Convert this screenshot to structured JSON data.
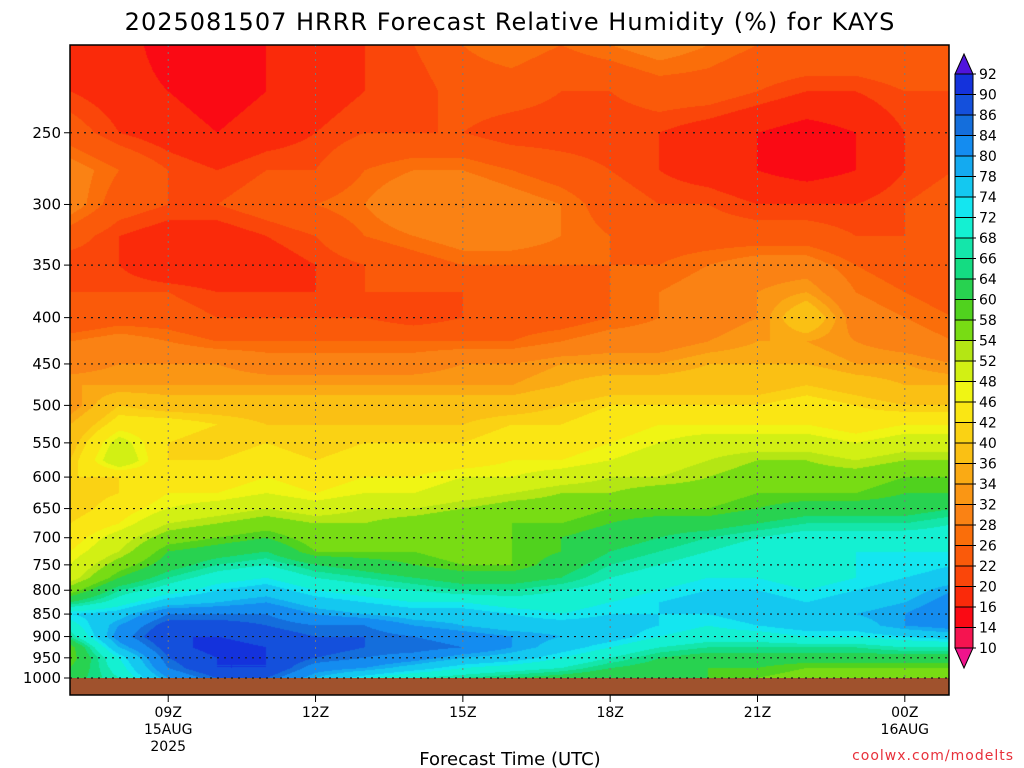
{
  "chart_data": {
    "type": "heatmap",
    "title": "2025081507 HRRR Forecast Relative Humidity (%) for KAYS",
    "xlabel": "Forecast Time (UTC)",
    "ylabel": "",
    "credit": "coolwx.com/modelts",
    "y_scale": "log",
    "y_reversed": true,
    "ylim": [
      1000,
      200
    ],
    "y_ticks": [
      250,
      300,
      350,
      400,
      450,
      500,
      550,
      600,
      650,
      700,
      750,
      800,
      850,
      900,
      950,
      1000
    ],
    "x_ticks": [
      {
        "hour": 9,
        "lines": [
          "09Z",
          "15AUG",
          "2025"
        ]
      },
      {
        "hour": 12,
        "lines": [
          "12Z"
        ]
      },
      {
        "hour": 15,
        "lines": [
          "15Z"
        ]
      },
      {
        "hour": 18,
        "lines": [
          "18Z"
        ]
      },
      {
        "hour": 21,
        "lines": [
          "21Z"
        ]
      },
      {
        "hour": 24,
        "lines": [
          "00Z",
          "16AUG"
        ]
      }
    ],
    "xlim": [
      7.0,
      24.9
    ],
    "grid": true,
    "colorbar": {
      "levels": [
        10,
        14,
        16,
        20,
        22,
        26,
        28,
        32,
        34,
        36,
        40,
        42,
        46,
        48,
        52,
        54,
        58,
        60,
        64,
        66,
        68,
        72,
        74,
        78,
        80,
        84,
        86,
        90,
        92
      ],
      "colors": [
        "#f0148c",
        "#f51450",
        "#fa0a14",
        "#fa2a0a",
        "#fa460a",
        "#fa5a0a",
        "#fa6e0a",
        "#fa8214",
        "#fa9614",
        "#faaa14",
        "#fac014",
        "#fad214",
        "#fae614",
        "#f0f514",
        "#d2f014",
        "#b4e614",
        "#78dc14",
        "#50d21e",
        "#28d250",
        "#14dc82",
        "#14e6aa",
        "#14f0d2",
        "#14e6f0",
        "#14c8f0",
        "#14aaf0",
        "#148cf0",
        "#146edc",
        "#1450dc",
        "#1432dc",
        "#5014dc"
      ]
    },
    "ground_color": "#a0522d",
    "hours": [
      7,
      8,
      9,
      10,
      11,
      12,
      13,
      14,
      15,
      16,
      17,
      18,
      19,
      20,
      21,
      22,
      23,
      24,
      25
    ],
    "levels_hpa": [
      1000,
      975,
      950,
      925,
      900,
      875,
      850,
      825,
      800,
      775,
      750,
      725,
      700,
      675,
      650,
      625,
      600,
      575,
      550,
      525,
      500,
      475,
      450,
      425,
      400,
      375,
      350,
      325,
      300,
      275,
      250,
      225,
      200
    ],
    "rh": [
      [
        62,
        60,
        58,
        58,
        66,
        70,
        74,
        64,
        56,
        50,
        48,
        46,
        44,
        42,
        40,
        40,
        42,
        40,
        38,
        36,
        32,
        34,
        30,
        28,
        22,
        22,
        20,
        24,
        30,
        30,
        24,
        20,
        20
      ],
      [
        68,
        70,
        72,
        78,
        82,
        80,
        76,
        70,
        66,
        60,
        56,
        52,
        50,
        46,
        44,
        42,
        42,
        52,
        50,
        44,
        40,
        34,
        32,
        30,
        24,
        22,
        20,
        20,
        24,
        26,
        20,
        18,
        18
      ],
      [
        80,
        84,
        86,
        88,
        90,
        88,
        84,
        76,
        70,
        66,
        62,
        60,
        56,
        52,
        48,
        46,
        44,
        42,
        42,
        44,
        38,
        34,
        32,
        28,
        24,
        22,
        16,
        18,
        22,
        22,
        18,
        16,
        14
      ],
      [
        86,
        90,
        90,
        92,
        90,
        88,
        84,
        78,
        74,
        70,
        66,
        62,
        58,
        54,
        50,
        46,
        44,
        42,
        40,
        42,
        38,
        34,
        32,
        26,
        22,
        20,
        16,
        18,
        22,
        20,
        16,
        14,
        14
      ],
      [
        86,
        90,
        90,
        90,
        88,
        86,
        84,
        80,
        76,
        72,
        68,
        64,
        60,
        56,
        52,
        48,
        46,
        44,
        42,
        40,
        38,
        34,
        30,
        26,
        22,
        20,
        18,
        20,
        24,
        22,
        18,
        16,
        16
      ],
      [
        78,
        82,
        86,
        88,
        86,
        84,
        80,
        76,
        72,
        68,
        64,
        58,
        56,
        54,
        50,
        46,
        44,
        42,
        40,
        40,
        38,
        34,
        30,
        26,
        22,
        20,
        20,
        22,
        26,
        22,
        20,
        18,
        18
      ],
      [
        72,
        80,
        84,
        86,
        86,
        84,
        78,
        74,
        70,
        66,
        62,
        58,
        56,
        54,
        52,
        48,
        46,
        44,
        42,
        40,
        38,
        34,
        30,
        26,
        22,
        22,
        22,
        26,
        28,
        26,
        22,
        20,
        20
      ],
      [
        68,
        76,
        82,
        86,
        84,
        80,
        76,
        72,
        68,
        64,
        60,
        58,
        56,
        56,
        52,
        48,
        46,
        44,
        42,
        40,
        38,
        34,
        30,
        26,
        20,
        22,
        24,
        28,
        32,
        28,
        22,
        20,
        22
      ],
      [
        66,
        72,
        78,
        84,
        82,
        78,
        76,
        72,
        66,
        62,
        58,
        56,
        56,
        58,
        54,
        50,
        48,
        44,
        42,
        40,
        38,
        34,
        32,
        26,
        22,
        22,
        26,
        30,
        32,
        28,
        22,
        24,
        26
      ],
      [
        64,
        70,
        76,
        80,
        80,
        76,
        74,
        70,
        66,
        62,
        58,
        58,
        58,
        58,
        56,
        52,
        48,
        46,
        44,
        42,
        38,
        34,
        32,
        26,
        24,
        24,
        26,
        30,
        30,
        26,
        20,
        24,
        28
      ],
      [
        62,
        68,
        72,
        76,
        78,
        76,
        72,
        70,
        68,
        64,
        62,
        60,
        60,
        58,
        56,
        54,
        50,
        46,
        44,
        42,
        40,
        36,
        34,
        28,
        24,
        24,
        26,
        28,
        28,
        24,
        20,
        22,
        26
      ],
      [
        60,
        64,
        68,
        72,
        76,
        76,
        74,
        72,
        70,
        68,
        66,
        64,
        62,
        60,
        58,
        54,
        52,
        48,
        46,
        44,
        42,
        38,
        34,
        30,
        26,
        26,
        26,
        26,
        24,
        22,
        20,
        22,
        28
      ],
      [
        60,
        62,
        64,
        68,
        72,
        74,
        74,
        74,
        72,
        70,
        68,
        66,
        64,
        62,
        58,
        56,
        52,
        50,
        48,
        46,
        42,
        38,
        34,
        30,
        28,
        28,
        26,
        24,
        22,
        20,
        20,
        24,
        30
      ],
      [
        60,
        60,
        62,
        66,
        70,
        72,
        74,
        76,
        74,
        72,
        70,
        68,
        66,
        62,
        58,
        56,
        54,
        52,
        50,
        46,
        42,
        38,
        36,
        32,
        30,
        30,
        28,
        24,
        22,
        18,
        18,
        24,
        28
      ],
      [
        58,
        60,
        62,
        66,
        70,
        74,
        76,
        76,
        74,
        72,
        70,
        70,
        68,
        64,
        60,
        58,
        56,
        54,
        50,
        46,
        42,
        38,
        36,
        34,
        32,
        32,
        30,
        24,
        20,
        16,
        16,
        22,
        26
      ],
      [
        56,
        58,
        62,
        66,
        72,
        76,
        76,
        74,
        72,
        70,
        70,
        72,
        70,
        66,
        62,
        58,
        56,
        54,
        50,
        46,
        44,
        40,
        36,
        34,
        40,
        34,
        30,
        24,
        20,
        14,
        14,
        20,
        26
      ],
      [
        56,
        58,
        62,
        66,
        72,
        76,
        78,
        76,
        74,
        72,
        72,
        72,
        70,
        66,
        62,
        58,
        56,
        52,
        48,
        44,
        42,
        38,
        34,
        32,
        30,
        28,
        26,
        22,
        20,
        16,
        16,
        20,
        26
      ],
      [
        54,
        58,
        62,
        68,
        74,
        80,
        80,
        78,
        76,
        74,
        72,
        72,
        70,
        66,
        62,
        60,
        58,
        54,
        50,
        46,
        40,
        36,
        34,
        30,
        28,
        26,
        24,
        22,
        22,
        20,
        20,
        22,
        26
      ],
      [
        54,
        58,
        62,
        68,
        76,
        82,
        84,
        82,
        80,
        76,
        74,
        72,
        70,
        68,
        64,
        60,
        58,
        54,
        50,
        46,
        40,
        36,
        32,
        28,
        26,
        24,
        22,
        22,
        24,
        22,
        20,
        22,
        24
      ]
    ]
  }
}
